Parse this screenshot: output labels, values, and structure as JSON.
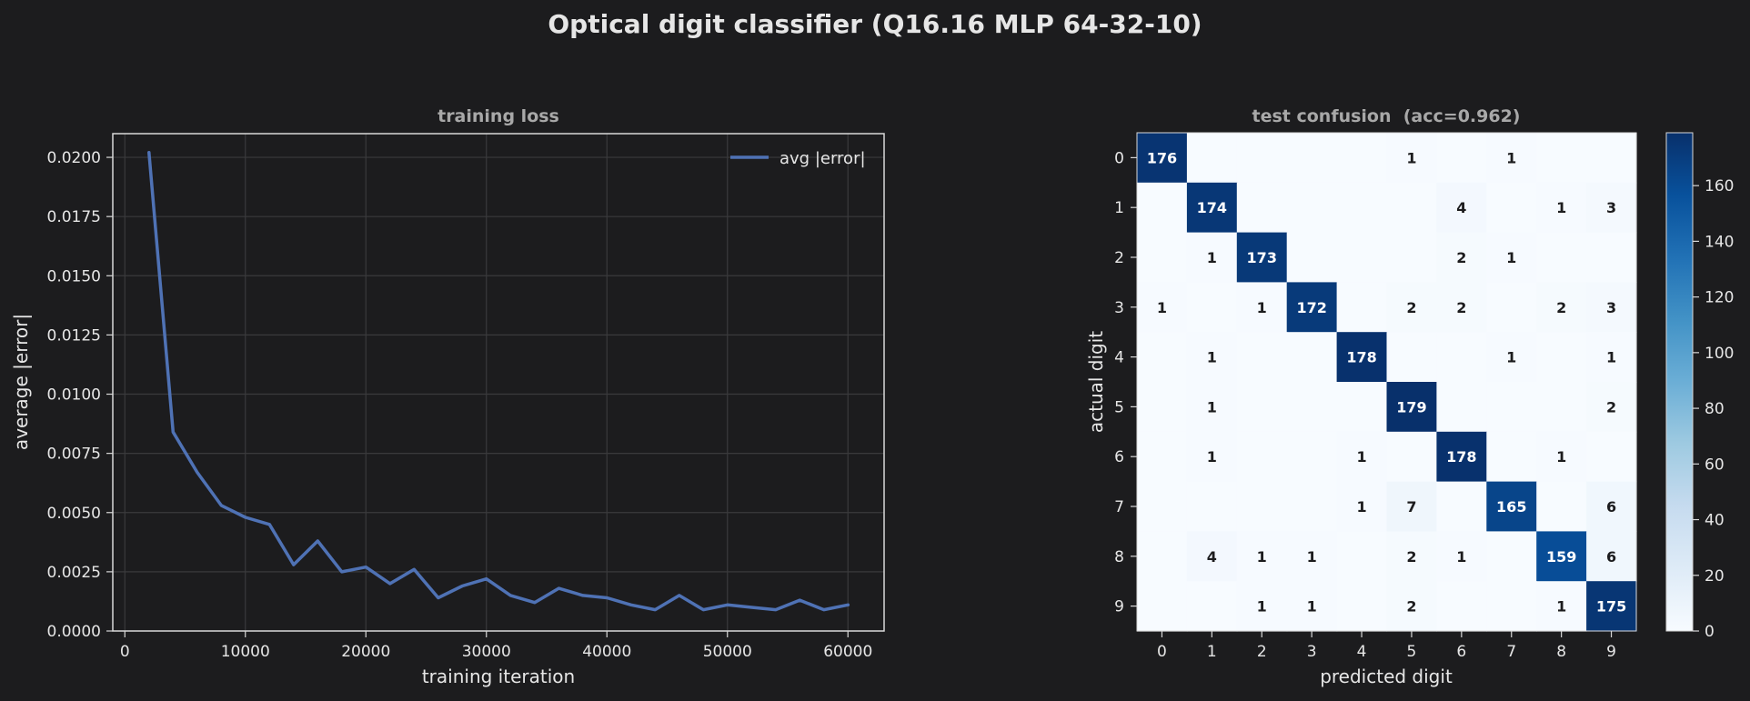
{
  "suptitle": "Optical digit classifier (Q16.16 MLP 64-32-10)",
  "colors": {
    "background": "#1c1c1e",
    "axes_face": "#1c1c1e",
    "grid": "#3a3a3c",
    "spine": "#d8d8d8",
    "text": "#e6e6e6",
    "title_muted": "#a8a8a8",
    "line": "#4f72b5"
  },
  "chart_data": [
    {
      "type": "line",
      "title": "training loss",
      "xlabel": "training iteration",
      "ylabel": "average |error|",
      "xlim": [
        -1000,
        63000
      ],
      "ylim": [
        0,
        0.021
      ],
      "xticks": [
        0,
        10000,
        20000,
        30000,
        40000,
        50000,
        60000
      ],
      "yticks": [
        0.0,
        0.0025,
        0.005,
        0.0075,
        0.01,
        0.0125,
        0.015,
        0.0175,
        0.02
      ],
      "xtick_labels": [
        "0",
        "10000",
        "20000",
        "30000",
        "40000",
        "50000",
        "60000"
      ],
      "ytick_labels": [
        "0.0000",
        "0.0025",
        "0.0050",
        "0.0075",
        "0.0100",
        "0.0125",
        "0.0150",
        "0.0175",
        "0.0200"
      ],
      "grid": true,
      "legend": {
        "position": "upper-right",
        "entries": [
          "avg |error|"
        ]
      },
      "series": [
        {
          "name": "avg |error|",
          "x": [
            2000,
            4000,
            6000,
            8000,
            10000,
            12000,
            14000,
            16000,
            18000,
            20000,
            22000,
            24000,
            26000,
            28000,
            30000,
            32000,
            34000,
            36000,
            38000,
            40000,
            42000,
            44000,
            46000,
            48000,
            50000,
            52000,
            54000,
            56000,
            58000,
            60000
          ],
          "y": [
            0.0202,
            0.0084,
            0.0067,
            0.0053,
            0.0048,
            0.0045,
            0.0028,
            0.0038,
            0.0025,
            0.0027,
            0.002,
            0.0026,
            0.0014,
            0.0019,
            0.0022,
            0.0015,
            0.0012,
            0.0018,
            0.0015,
            0.0014,
            0.0011,
            0.0009,
            0.0015,
            0.0009,
            0.0011,
            0.001,
            0.0009,
            0.0013,
            0.0009,
            0.0011
          ]
        }
      ]
    },
    {
      "type": "heatmap",
      "title": "test confusion  (acc=0.962)",
      "xlabel": "predicted digit",
      "ylabel": "actual digit",
      "x_categories": [
        "0",
        "1",
        "2",
        "3",
        "4",
        "5",
        "6",
        "7",
        "8",
        "9"
      ],
      "y_categories": [
        "0",
        "1",
        "2",
        "3",
        "4",
        "5",
        "6",
        "7",
        "8",
        "9"
      ],
      "matrix": [
        [
          176,
          0,
          0,
          0,
          0,
          1,
          0,
          1,
          0,
          0
        ],
        [
          0,
          174,
          0,
          0,
          0,
          0,
          4,
          0,
          1,
          3
        ],
        [
          0,
          1,
          173,
          0,
          0,
          0,
          2,
          1,
          0,
          0
        ],
        [
          1,
          0,
          1,
          172,
          0,
          2,
          2,
          0,
          2,
          3
        ],
        [
          0,
          1,
          0,
          0,
          178,
          0,
          0,
          1,
          0,
          1
        ],
        [
          0,
          1,
          0,
          0,
          0,
          179,
          0,
          0,
          0,
          2
        ],
        [
          0,
          1,
          0,
          0,
          1,
          0,
          178,
          0,
          1,
          0
        ],
        [
          0,
          0,
          0,
          0,
          1,
          7,
          0,
          165,
          0,
          6
        ],
        [
          0,
          4,
          1,
          1,
          0,
          2,
          1,
          0,
          159,
          6
        ],
        [
          0,
          0,
          1,
          1,
          0,
          2,
          0,
          0,
          1,
          175
        ]
      ],
      "colormap": "Blues",
      "vmin": 0,
      "vmax": 179,
      "colorbar_ticks": [
        0,
        20,
        40,
        60,
        80,
        100,
        120,
        140,
        160
      ],
      "colorbar_tick_labels": [
        "0",
        "20",
        "40",
        "60",
        "80",
        "100",
        "120",
        "140",
        "160"
      ]
    }
  ]
}
